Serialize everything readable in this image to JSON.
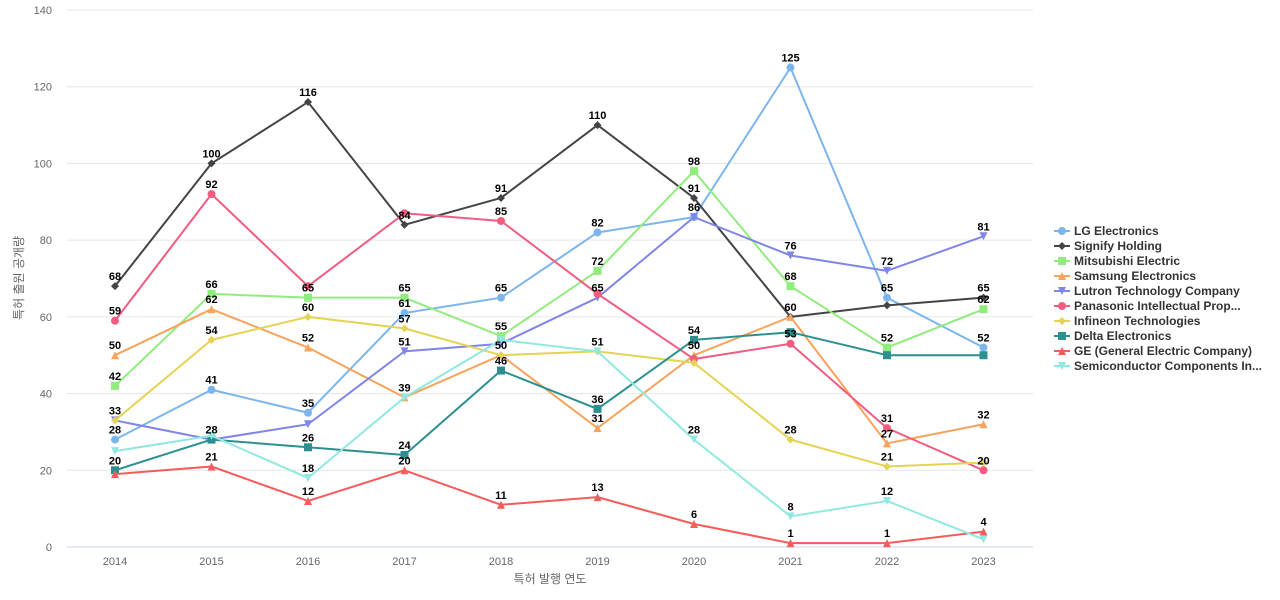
{
  "chart_data": {
    "type": "line",
    "xlabel": "특허 발행 연도",
    "ylabel": "특허 출원 공개량",
    "ylim": [
      0,
      140
    ],
    "yticks": [
      0,
      20,
      40,
      60,
      80,
      100,
      120,
      140
    ],
    "grid": true,
    "legend_position": "right",
    "x": [
      "2014",
      "2015",
      "2016",
      "2017",
      "2018",
      "2019",
      "2020",
      "2021",
      "2022",
      "2023"
    ],
    "series": [
      {
        "name": "LG Electronics",
        "color": "#7cb5ec",
        "marker": "circle",
        "values": [
          28,
          41,
          35,
          61,
          65,
          82,
          86,
          125,
          65,
          52
        ]
      },
      {
        "name": "Signify Holding",
        "color": "#434348",
        "marker": "diamond",
        "values": [
          68,
          100,
          116,
          84,
          91,
          110,
          91,
          60,
          63,
          65
        ]
      },
      {
        "name": "Mitsubishi Electric",
        "color": "#90ed7d",
        "marker": "square",
        "values": [
          42,
          66,
          65,
          65,
          55,
          72,
          98,
          68,
          52,
          62
        ]
      },
      {
        "name": "Samsung Electronics",
        "color": "#f7a35c",
        "marker": "triangle",
        "values": [
          50,
          62,
          52,
          39,
          50,
          31,
          50,
          60,
          27,
          32
        ]
      },
      {
        "name": "Lutron Technology Company",
        "color": "#8085e9",
        "marker": "triangle-down",
        "values": [
          33,
          28,
          32,
          51,
          53,
          65,
          86,
          76,
          72,
          81
        ]
      },
      {
        "name": "Panasonic Intellectual Prop...",
        "color": "#f15c80",
        "marker": "circle",
        "values": [
          59,
          92,
          68,
          87,
          85,
          66,
          49,
          53,
          31,
          20
        ]
      },
      {
        "name": "Infineon Technologies",
        "color": "#e4d354",
        "marker": "diamond",
        "values": [
          33,
          54,
          60,
          57,
          50,
          51,
          48,
          28,
          21,
          22
        ]
      },
      {
        "name": "Delta Electronics",
        "color": "#2b908f",
        "marker": "square",
        "values": [
          20,
          28,
          26,
          24,
          46,
          36,
          54,
          56,
          50,
          50
        ]
      },
      {
        "name": "GE (General Electric Company)",
        "color": "#f45b5b",
        "marker": "triangle",
        "values": [
          19,
          21,
          12,
          20,
          11,
          13,
          6,
          1,
          1,
          4
        ]
      },
      {
        "name": "Semiconductor Components In...",
        "color": "#91e8e1",
        "marker": "triangle-down",
        "values": [
          25,
          29,
          18,
          39,
          54,
          51,
          28,
          8,
          12,
          2
        ]
      }
    ],
    "data_labels": [
      {
        "x": "2014",
        "value": 68,
        "text": "68"
      },
      {
        "x": "2014",
        "value": 59,
        "text": "59"
      },
      {
        "x": "2014",
        "value": 50,
        "text": "50"
      },
      {
        "x": "2014",
        "value": 42,
        "text": "42"
      },
      {
        "x": "2014",
        "value": 33,
        "text": "33"
      },
      {
        "x": "2014",
        "value": 28,
        "text": "28"
      },
      {
        "x": "2014",
        "value": 20,
        "text": "20"
      },
      {
        "x": "2015",
        "value": 100,
        "text": "100"
      },
      {
        "x": "2015",
        "value": 92,
        "text": "92"
      },
      {
        "x": "2015",
        "value": 66,
        "text": "66"
      },
      {
        "x": "2015",
        "value": 62,
        "text": "62"
      },
      {
        "x": "2015",
        "value": 54,
        "text": "54"
      },
      {
        "x": "2015",
        "value": 41,
        "text": "41"
      },
      {
        "x": "2015",
        "value": 28,
        "text": "28"
      },
      {
        "x": "2015",
        "value": 21,
        "text": "21"
      },
      {
        "x": "2016",
        "value": 116,
        "text": "116"
      },
      {
        "x": "2016",
        "value": 65,
        "text": "65"
      },
      {
        "x": "2016",
        "value": 60,
        "text": "60"
      },
      {
        "x": "2016",
        "value": 52,
        "text": "52"
      },
      {
        "x": "2016",
        "value": 35,
        "text": "35"
      },
      {
        "x": "2016",
        "value": 26,
        "text": "26"
      },
      {
        "x": "2016",
        "value": 18,
        "text": "18"
      },
      {
        "x": "2016",
        "value": 12,
        "text": "12"
      },
      {
        "x": "2017",
        "value": 84,
        "text": "84"
      },
      {
        "x": "2017",
        "value": 65,
        "text": "65"
      },
      {
        "x": "2017",
        "value": 61,
        "text": "61"
      },
      {
        "x": "2017",
        "value": 57,
        "text": "57"
      },
      {
        "x": "2017",
        "value": 51,
        "text": "51"
      },
      {
        "x": "2017",
        "value": 39,
        "text": "39"
      },
      {
        "x": "2017",
        "value": 24,
        "text": "24"
      },
      {
        "x": "2017",
        "value": 20,
        "text": "20"
      },
      {
        "x": "2018",
        "value": 91,
        "text": "91"
      },
      {
        "x": "2018",
        "value": 85,
        "text": "85"
      },
      {
        "x": "2018",
        "value": 65,
        "text": "65"
      },
      {
        "x": "2018",
        "value": 55,
        "text": "55"
      },
      {
        "x": "2018",
        "value": 50,
        "text": "50"
      },
      {
        "x": "2018",
        "value": 46,
        "text": "46"
      },
      {
        "x": "2018",
        "value": 11,
        "text": "11"
      },
      {
        "x": "2019",
        "value": 110,
        "text": "110"
      },
      {
        "x": "2019",
        "value": 82,
        "text": "82"
      },
      {
        "x": "2019",
        "value": 72,
        "text": "72"
      },
      {
        "x": "2019",
        "value": 65,
        "text": "65"
      },
      {
        "x": "2019",
        "value": 51,
        "text": "51"
      },
      {
        "x": "2019",
        "value": 36,
        "text": "36"
      },
      {
        "x": "2019",
        "value": 31,
        "text": "31"
      },
      {
        "x": "2019",
        "value": 13,
        "text": "13"
      },
      {
        "x": "2020",
        "value": 98,
        "text": "98"
      },
      {
        "x": "2020",
        "value": 91,
        "text": "91"
      },
      {
        "x": "2020",
        "value": 86,
        "text": "86"
      },
      {
        "x": "2020",
        "value": 54,
        "text": "54"
      },
      {
        "x": "2020",
        "value": 50,
        "text": "50"
      },
      {
        "x": "2020",
        "value": 28,
        "text": "28"
      },
      {
        "x": "2020",
        "value": 6,
        "text": "6"
      },
      {
        "x": "2021",
        "value": 125,
        "text": "125"
      },
      {
        "x": "2021",
        "value": 76,
        "text": "76"
      },
      {
        "x": "2021",
        "value": 68,
        "text": "68"
      },
      {
        "x": "2021",
        "value": 60,
        "text": "60"
      },
      {
        "x": "2021",
        "value": 53,
        "text": "53"
      },
      {
        "x": "2021",
        "value": 28,
        "text": "28"
      },
      {
        "x": "2021",
        "value": 8,
        "text": "8"
      },
      {
        "x": "2021",
        "value": 1,
        "text": "1"
      },
      {
        "x": "2022",
        "value": 72,
        "text": "72"
      },
      {
        "x": "2022",
        "value": 65,
        "text": "65"
      },
      {
        "x": "2022",
        "value": 52,
        "text": "52"
      },
      {
        "x": "2022",
        "value": 31,
        "text": "31"
      },
      {
        "x": "2022",
        "value": 27,
        "text": "27"
      },
      {
        "x": "2022",
        "value": 21,
        "text": "21"
      },
      {
        "x": "2022",
        "value": 12,
        "text": "12"
      },
      {
        "x": "2022",
        "value": 1,
        "text": "1"
      },
      {
        "x": "2023",
        "value": 81,
        "text": "81"
      },
      {
        "x": "2023",
        "value": 65,
        "text": "65"
      },
      {
        "x": "2023",
        "value": 62,
        "text": "62"
      },
      {
        "x": "2023",
        "value": 52,
        "text": "52"
      },
      {
        "x": "2023",
        "value": 32,
        "text": "32"
      },
      {
        "x": "2023",
        "value": 20,
        "text": "20"
      },
      {
        "x": "2023",
        "value": 4,
        "text": "4"
      }
    ]
  }
}
